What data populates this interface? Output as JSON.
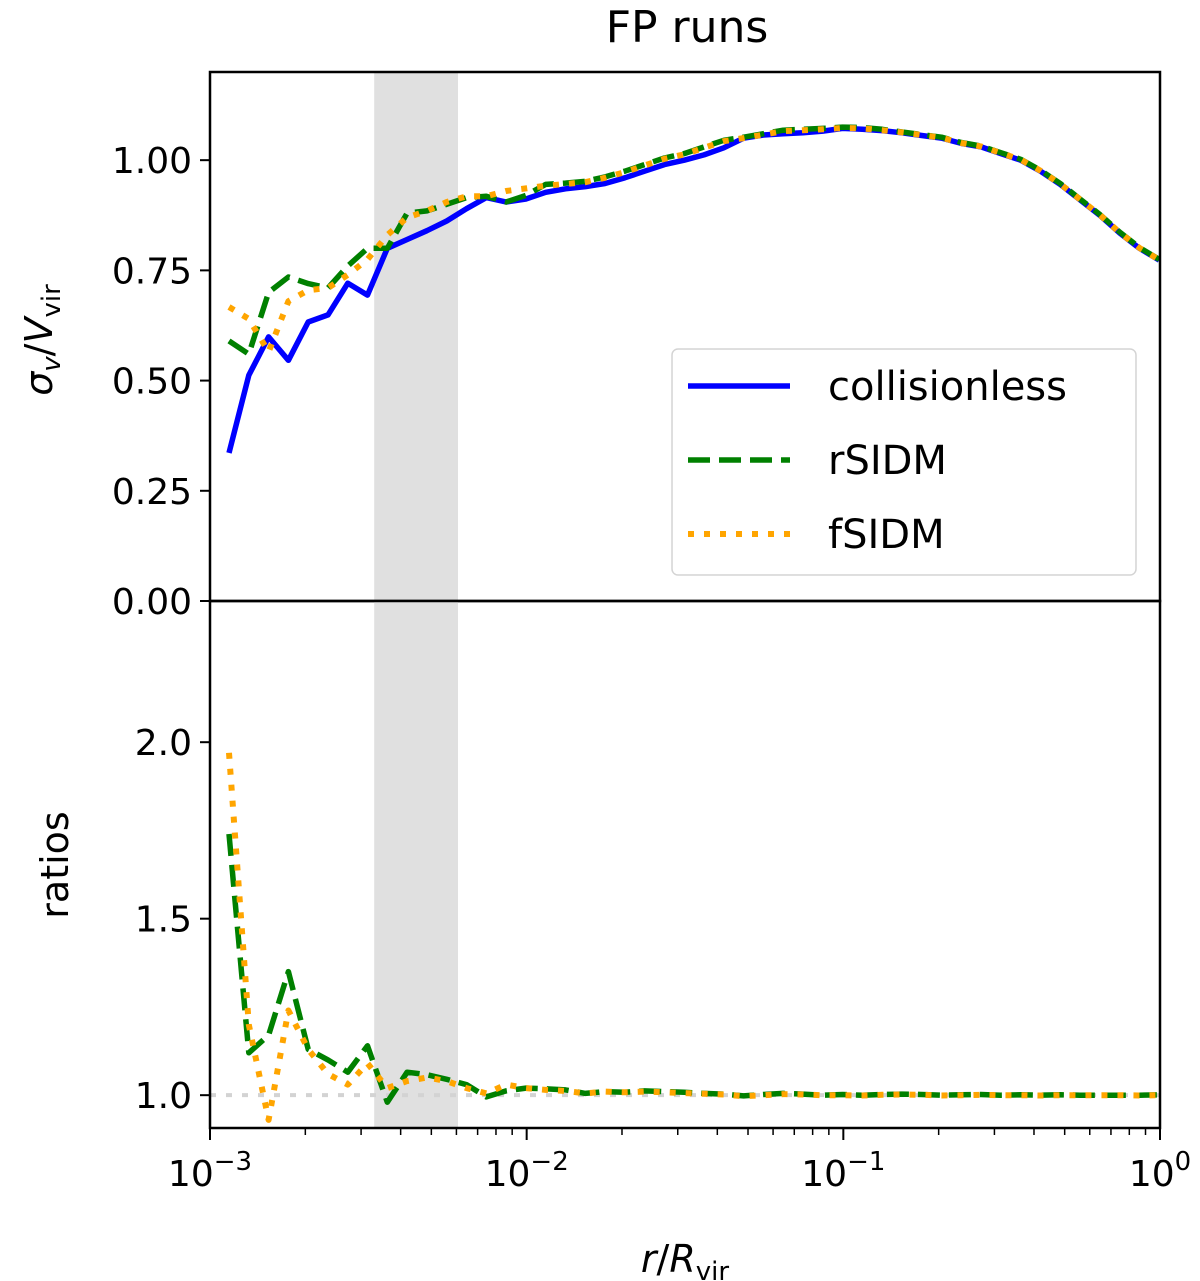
{
  "chart_data": [
    {
      "type": "line",
      "title": "FP runs",
      "ylabel": "σv/Vvir",
      "ylabel_parts": {
        "main": "σ",
        "sub1": "v",
        "slash": "/",
        "main2": "V",
        "sub2": "vir"
      },
      "xscale": "log",
      "xlim": [
        0.001,
        1
      ],
      "ylim": [
        0,
        1.2
      ],
      "yticks": [
        0,
        0.25,
        0.5,
        0.75,
        1.0
      ],
      "ytick_labels": [
        "0.00",
        "0.25",
        "0.50",
        "0.75",
        "1.00"
      ],
      "shaded_band": [
        0.0033,
        0.00607
      ],
      "legend": {
        "placement": "center-right",
        "entries": [
          "collisionless",
          "rSIDM",
          "fSIDM"
        ]
      },
      "log10_x_start": -2.94,
      "log10_x_step": 0.0625,
      "series": [
        {
          "name": "collisionless",
          "color": "#0000ff",
          "style": "solid",
          "values": [
            0.336,
            0.512,
            0.599,
            0.546,
            0.633,
            0.649,
            0.721,
            0.694,
            0.8,
            0.82,
            0.84,
            0.862,
            0.89,
            0.915,
            0.905,
            0.912,
            0.927,
            0.935,
            0.94,
            0.947,
            0.96,
            0.975,
            0.99,
            1.0,
            1.012,
            1.028,
            1.05,
            1.057,
            1.06,
            1.062,
            1.066,
            1.072,
            1.07,
            1.067,
            1.062,
            1.056,
            1.05,
            1.038,
            1.03,
            1.015,
            1.0,
            0.975,
            0.945,
            0.91,
            0.875,
            0.835,
            0.8,
            0.773
          ]
        },
        {
          "name": "rSIDM",
          "color": "#008000",
          "style": "dashed",
          "values": [
            0.59,
            0.56,
            0.7,
            0.735,
            0.72,
            0.71,
            0.76,
            0.8,
            0.8,
            0.88,
            0.885,
            0.9,
            0.915,
            0.918,
            0.905,
            0.92,
            0.945,
            0.948,
            0.952,
            0.962,
            0.975,
            0.99,
            1.005,
            1.015,
            1.03,
            1.045,
            1.052,
            1.06,
            1.068,
            1.07,
            1.072,
            1.075,
            1.074,
            1.07,
            1.064,
            1.058,
            1.052,
            1.04,
            1.032,
            1.017,
            1.002,
            0.977,
            0.947,
            0.912,
            0.877,
            0.837,
            0.802,
            0.775
          ]
        },
        {
          "name": "fSIDM",
          "color": "#ffa500",
          "style": "dotted",
          "values": [
            0.667,
            0.64,
            0.565,
            0.68,
            0.705,
            0.71,
            0.74,
            0.775,
            0.83,
            0.87,
            0.885,
            0.905,
            0.918,
            0.918,
            0.93,
            0.936,
            0.942,
            0.946,
            0.95,
            0.96,
            0.973,
            0.988,
            1.003,
            1.013,
            1.028,
            1.043,
            1.05,
            1.058,
            1.066,
            1.068,
            1.07,
            1.073,
            1.072,
            1.068,
            1.063,
            1.057,
            1.051,
            1.039,
            1.031,
            1.016,
            1.001,
            0.976,
            0.946,
            0.911,
            0.876,
            0.836,
            0.801,
            0.774
          ]
        }
      ]
    },
    {
      "type": "line",
      "ylabel": "ratios",
      "xlabel": "r/Rvir",
      "xlabel_parts": {
        "main": "r",
        "slash": "/",
        "main2": "R",
        "sub": "vir"
      },
      "xscale": "log",
      "xlim": [
        0.001,
        1
      ],
      "xtick_labels": [
        {
          "base": "10",
          "exp": "−3"
        },
        {
          "base": "10",
          "exp": "−2"
        },
        {
          "base": "10",
          "exp": "−1"
        },
        {
          "base": "10",
          "exp": "0"
        }
      ],
      "ylim": [
        0.907,
        2.4
      ],
      "yticks": [
        1.0,
        1.5,
        2.0
      ],
      "ytick_labels": [
        "1.0",
        "1.5",
        "2.0"
      ],
      "reference_line": 1.0,
      "shaded_band": [
        0.0033,
        0.00607
      ],
      "log10_x_start": -2.94,
      "log10_x_step": 0.0625,
      "series": [
        {
          "name": "rSIDM",
          "color": "#008000",
          "style": "dashed",
          "values": [
            1.74,
            1.12,
            1.17,
            1.35,
            1.13,
            1.1,
            1.065,
            1.14,
            0.98,
            1.065,
            1.058,
            1.045,
            1.03,
            0.995,
            1.012,
            1.02,
            1.018,
            1.015,
            1.005,
            1.01,
            1.008,
            1.012,
            1.01,
            1.008,
            1.005,
            1.003,
            0.998,
            1.002,
            1.005,
            1.003,
            1.0,
            1.002,
            1.0,
            1.002,
            1.003,
            1.002,
            1.0,
            1.001,
            1.002,
            1.0,
            1.001,
            1.0,
            1.001,
            1.0,
            1.0,
            1.0,
            1.0,
            1.001
          ]
        },
        {
          "name": "fSIDM",
          "color": "#ffa500",
          "style": "dotted",
          "values": [
            1.97,
            1.2,
            0.93,
            1.24,
            1.13,
            1.06,
            1.03,
            1.09,
            1.02,
            1.04,
            1.05,
            1.04,
            1.02,
            1.005,
            1.03,
            1.02,
            1.015,
            1.012,
            1.005,
            1.01,
            1.008,
            1.01,
            1.008,
            1.006,
            1.004,
            1.002,
            0.997,
            1.0,
            1.003,
            1.002,
            1.0,
            1.0,
            0.999,
            1.001,
            1.002,
            1.001,
            0.999,
            1.0,
            1.001,
            1.0,
            1.0,
            0.999,
            1.0,
            1.0,
            1.0,
            1.0,
            0.999,
            1.0
          ]
        }
      ]
    }
  ]
}
